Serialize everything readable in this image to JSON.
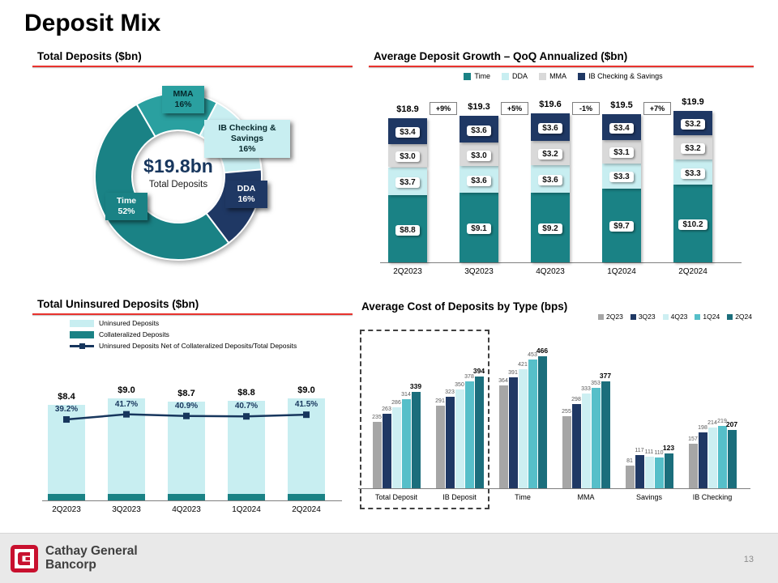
{
  "page": {
    "title": "Deposit Mix",
    "page_number": "13",
    "brand_line1": "Cathay General",
    "brand_line2": "Bancorp"
  },
  "chart_data": [
    {
      "id": "total-deposits-mix",
      "type": "pie",
      "title": "Total Deposits ($bn)",
      "center_value": "$19.8bn",
      "center_label": "Total Deposits",
      "start_angle": -30,
      "slices": [
        {
          "label": "MMA",
          "pct": 16,
          "pct_label": "16%",
          "color": "#2aa0a0"
        },
        {
          "label": "IB Checking & Savings",
          "pct": 16,
          "pct_label": "16%",
          "color": "#c8eef1"
        },
        {
          "label": "DDA",
          "pct": 16,
          "pct_label": "16%",
          "color": "#1f3864"
        },
        {
          "label": "Time",
          "pct": 52,
          "pct_label": "52%",
          "color": "#1a8285"
        }
      ]
    },
    {
      "id": "average-deposit-growth",
      "type": "bar",
      "stacked": true,
      "title": "Average Deposit Growth – QoQ Annualized ($bn)",
      "categories": [
        "2Q2023",
        "3Q2023",
        "4Q2023",
        "1Q2024",
        "2Q2024"
      ],
      "series": [
        {
          "name": "Time",
          "color": "#1a8285",
          "values": [
            8.8,
            9.1,
            9.2,
            9.7,
            10.2
          ]
        },
        {
          "name": "DDA",
          "color": "#c8eef1",
          "values": [
            3.7,
            3.6,
            3.6,
            3.3,
            3.3
          ]
        },
        {
          "name": "MMA",
          "color": "#d9d9d9",
          "values": [
            3.0,
            3.0,
            3.2,
            3.1,
            3.2
          ]
        },
        {
          "name": "IB Checking & Savings",
          "color": "#1f3864",
          "values": [
            3.4,
            3.6,
            3.6,
            3.4,
            3.2
          ]
        }
      ],
      "totals": [
        "$18.9",
        "$19.3",
        "$19.6",
        "$19.5",
        "$19.9"
      ],
      "growth_badges": [
        "+9%",
        "+5%",
        "-1%",
        "+7%"
      ],
      "value_prefix": "$"
    },
    {
      "id": "total-uninsured-deposits",
      "type": "bar+line",
      "title": "Total Uninsured Deposits ($bn)",
      "categories": [
        "2Q2023",
        "3Q2023",
        "4Q2023",
        "1Q2024",
        "2Q2024"
      ],
      "colors": {
        "uninsured": "#c8eef1",
        "collateralized": "#1a8285"
      },
      "legend": [
        {
          "label": "Uninsured Deposits",
          "color": "#c8eef1",
          "type": "box"
        },
        {
          "label": "Collateralized Deposits",
          "color": "#1a8285",
          "type": "box"
        },
        {
          "label": "Uninsured Deposits Net of Collateralized Deposits/Total Deposits",
          "color": "#17365d",
          "type": "line"
        }
      ],
      "bars": {
        "totals": [
          8.4,
          9.0,
          8.7,
          8.8,
          9.0
        ],
        "total_labels": [
          "$8.4",
          "$9.0",
          "$8.7",
          "$8.8",
          "$9.0"
        ],
        "collateralized": [
          0.6,
          0.6,
          0.6,
          0.6,
          0.6
        ]
      },
      "line": {
        "name": "Uninsured Deposits Net of Collateralized Deposits/Total Deposits",
        "color": "#17365d",
        "values": [
          39.2,
          41.7,
          40.9,
          40.7,
          41.5
        ],
        "labels": [
          "39.2%",
          "41.7%",
          "40.9%",
          "40.7%",
          "41.5%"
        ]
      }
    },
    {
      "id": "average-cost-of-deposits",
      "type": "bar",
      "grouped": true,
      "title": "Average Cost of Deposits by  Type (bps)",
      "categories": [
        "Total Deposit",
        "IB Deposit",
        "Time",
        "MMA",
        "Savings",
        "IB Checking"
      ],
      "series": [
        {
          "name": "2Q23",
          "color": "#a6a6a6",
          "values": [
            235,
            291,
            364,
            255,
            81,
            157
          ]
        },
        {
          "name": "3Q23",
          "color": "#1f3864",
          "values": [
            263,
            323,
            391,
            298,
            117,
            198
          ]
        },
        {
          "name": "4Q23",
          "color": "#cdeff2",
          "values": [
            286,
            350,
            421,
            333,
            111,
            214
          ]
        },
        {
          "name": "1Q24",
          "color": "#56bfc9",
          "values": [
            314,
            378,
            453,
            353,
            110,
            219
          ]
        },
        {
          "name": "2Q24",
          "color": "#1b6e7c",
          "values": [
            339,
            394,
            466,
            377,
            123,
            207
          ]
        }
      ],
      "highlighted_categories": [
        "Total Deposit",
        "IB Deposit"
      ]
    }
  ]
}
